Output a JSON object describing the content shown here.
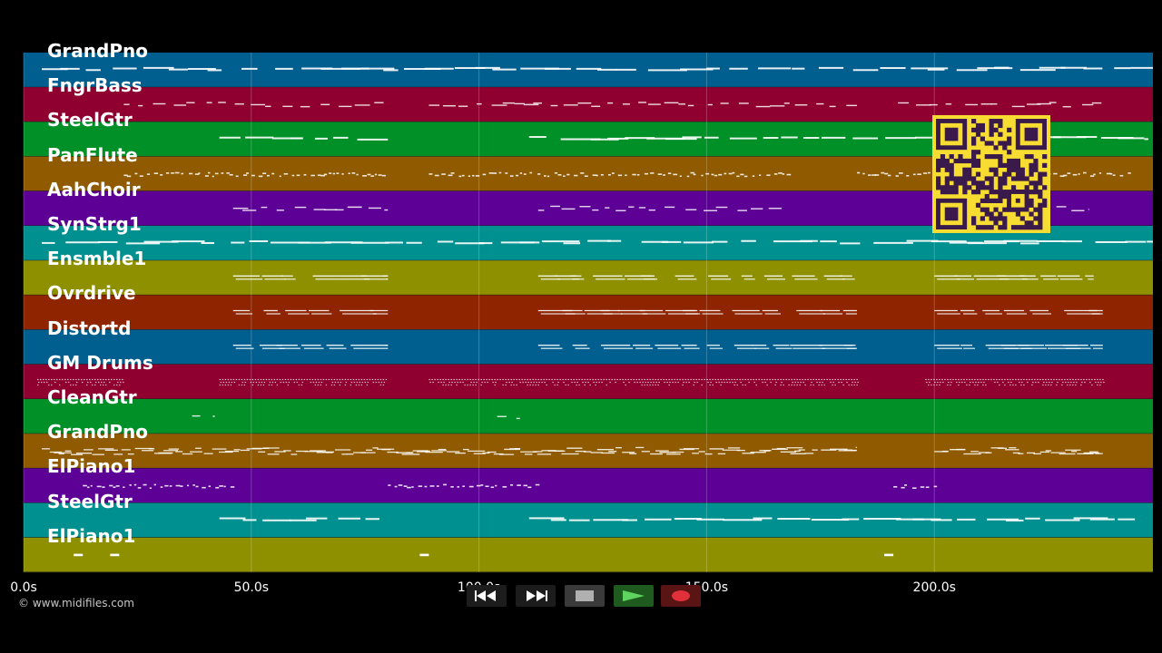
{
  "app": {
    "copyright": "© www.midifiles.com"
  },
  "timeline": {
    "max_seconds": 248,
    "ticks": [
      {
        "value": 0,
        "label": "0.0s"
      },
      {
        "value": 50,
        "label": "50.0s"
      },
      {
        "value": 100,
        "label": "100.0s"
      },
      {
        "value": 150,
        "label": "150.0s"
      },
      {
        "value": 200,
        "label": "200.0s"
      }
    ]
  },
  "tracks": [
    {
      "name": "GrandPno",
      "color": "#005f8f",
      "segments": [
        [
          4,
          248
        ]
      ],
      "style": "line"
    },
    {
      "name": "FngrBass",
      "color": "#8f0030",
      "segments": [
        [
          22,
          80
        ],
        [
          89,
          183
        ],
        [
          192,
          237
        ]
      ],
      "style": "dashed"
    },
    {
      "name": "SteelGtr",
      "color": "#009028",
      "segments": [
        [
          43,
          80
        ],
        [
          111,
          247
        ]
      ],
      "style": "line"
    },
    {
      "name": "PanFlute",
      "color": "#8f5a00",
      "segments": [
        [
          22,
          80
        ],
        [
          89,
          169
        ],
        [
          183,
          244
        ]
      ],
      "style": "dotted"
    },
    {
      "name": "AahChoir",
      "color": "#5c0096",
      "segments": [
        [
          46,
          80
        ],
        [
          113,
          167
        ],
        [
          200,
          234
        ]
      ],
      "style": "dashed"
    },
    {
      "name": "SynStrg1",
      "color": "#00908f",
      "segments": [
        [
          4,
          248
        ]
      ],
      "style": "line"
    },
    {
      "name": "Ensmble1",
      "color": "#8f9000",
      "segments": [
        [
          46,
          80
        ],
        [
          113,
          183
        ],
        [
          200,
          235
        ]
      ],
      "style": "double"
    },
    {
      "name": "Ovrdrive",
      "color": "#8f2400",
      "segments": [
        [
          46,
          80
        ],
        [
          113,
          183
        ],
        [
          200,
          237
        ]
      ],
      "style": "double"
    },
    {
      "name": "Distortd",
      "color": "#005f8f",
      "segments": [
        [
          46,
          80
        ],
        [
          113,
          183
        ],
        [
          200,
          237
        ]
      ],
      "style": "double"
    },
    {
      "name": "GM Drums",
      "color": "#8f0030",
      "segments": [
        [
          3,
          22
        ],
        [
          43,
          80
        ],
        [
          89,
          183
        ],
        [
          198,
          237
        ]
      ],
      "style": "drums"
    },
    {
      "name": "CleanGtr",
      "color": "#009028",
      "segments": [
        [
          37,
          42
        ],
        [
          104,
          109
        ]
      ],
      "style": "dashed"
    },
    {
      "name": "GrandPno",
      "color": "#8f5a00",
      "segments": [
        [
          4,
          183
        ],
        [
          200,
          237
        ]
      ],
      "style": "dense"
    },
    {
      "name": "ElPiano1",
      "color": "#5c0096",
      "segments": [
        [
          13,
          46
        ],
        [
          80,
          113
        ],
        [
          191,
          200
        ]
      ],
      "style": "dotted"
    },
    {
      "name": "SteelGtr",
      "color": "#00908f",
      "segments": [
        [
          43,
          80
        ],
        [
          111,
          247
        ]
      ],
      "style": "line"
    },
    {
      "name": "ElPiano1",
      "color": "#8f9000",
      "segments": [
        [
          11,
          13
        ],
        [
          19,
          21
        ],
        [
          87,
          89
        ],
        [
          189,
          191
        ]
      ],
      "style": "short"
    }
  ],
  "transport": {
    "rewind_icon": "rewind-icon",
    "fast_forward_icon": "fast-forward-icon",
    "stop_icon": "stop-icon",
    "play_icon": "play-icon",
    "record_icon": "record-icon",
    "play_color": "#5fd35f",
    "record_color": "#e0303a"
  },
  "overlay": {
    "qr_icon": "qr-code-icon",
    "qr_background": "#f7dd32",
    "qr_foreground": "#3a1a4a"
  }
}
